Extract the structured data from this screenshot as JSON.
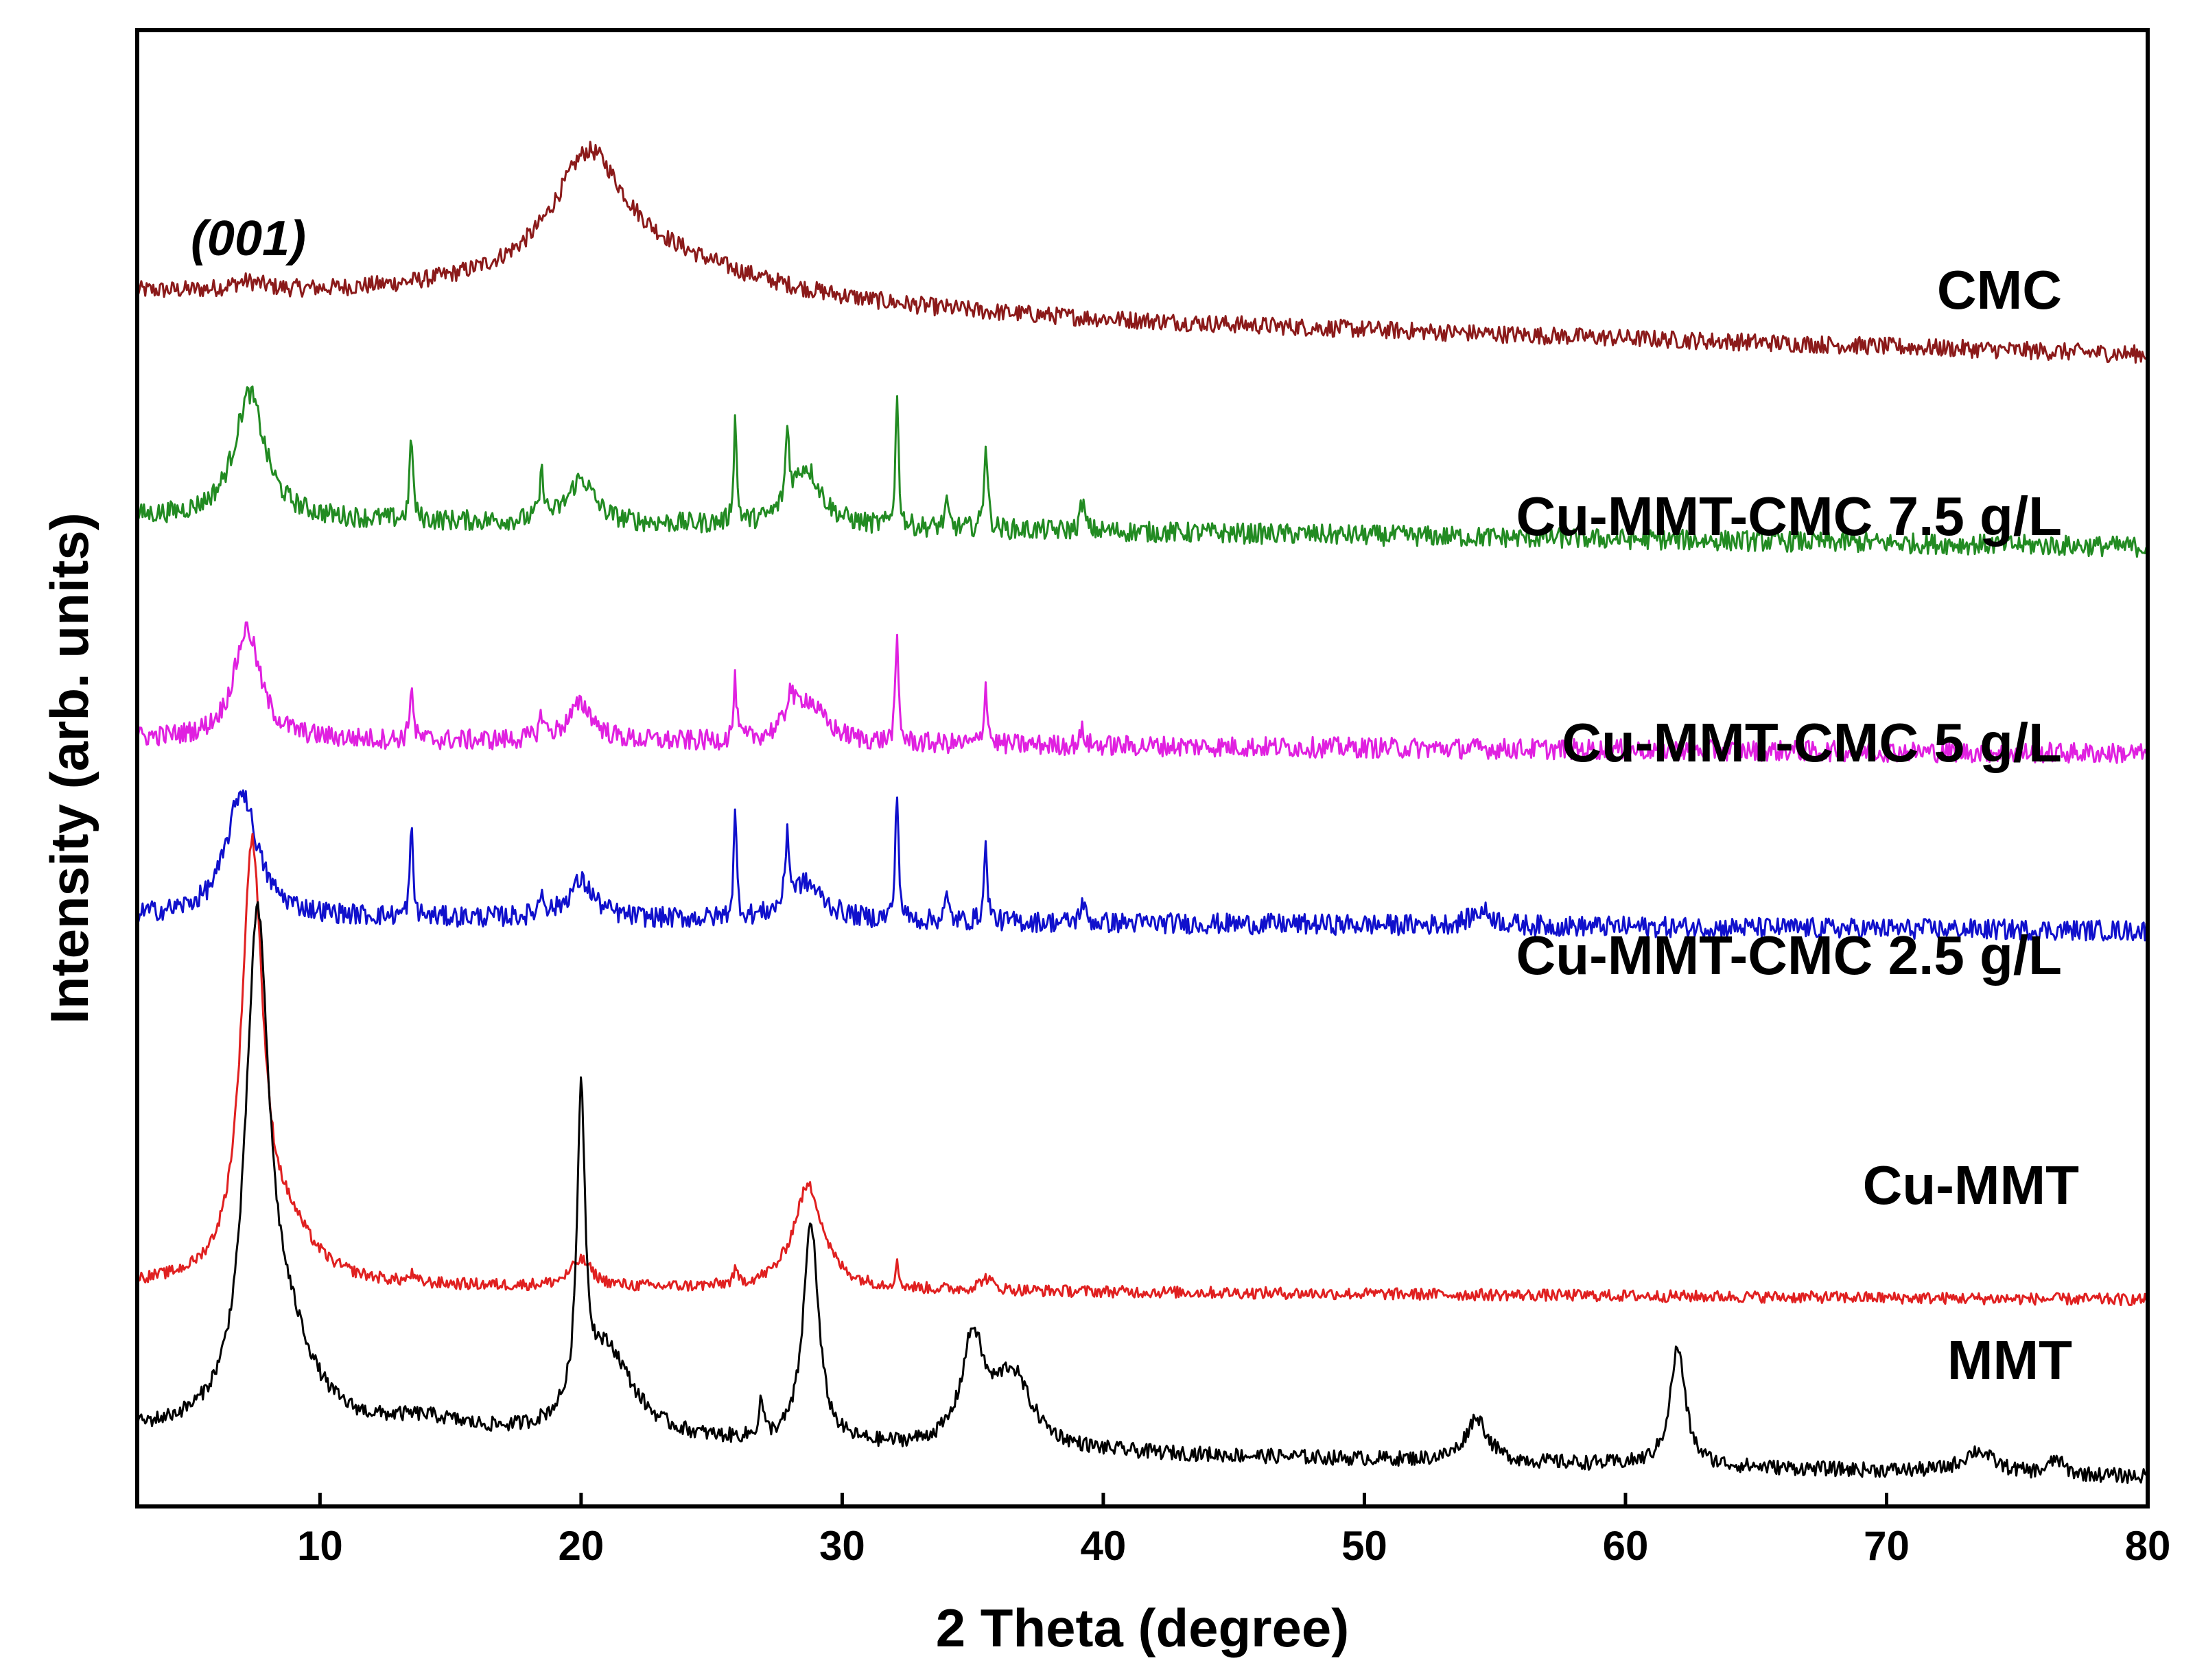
{
  "chart_data": {
    "type": "line",
    "title": "",
    "xlabel": "2 Theta (degree)",
    "ylabel": "Intensity (arb. units)",
    "xlim": [
      3,
      80
    ],
    "xticks": [
      10,
      20,
      30,
      40,
      50,
      60,
      70,
      80
    ],
    "xtick_labels": [
      "10",
      "20",
      "30",
      "40",
      "50",
      "60",
      "70",
      "80"
    ],
    "yticks": false,
    "grid": false,
    "legend": "inline labels at right of each curve",
    "annotations": [
      {
        "text": "(001)",
        "x": 7.2,
        "series_ref": "CMC"
      }
    ],
    "series": [
      {
        "name": "CMC",
        "label": "CMC",
        "color": "#8b1a1a",
        "baseline": 0.82,
        "noise": 0.006,
        "slope": -0.04,
        "peaks": [
          {
            "x": 7.2,
            "h": 0.006,
            "w": 0.8
          },
          {
            "x": 20.3,
            "h": 0.075,
            "w": 1.6
          },
          {
            "x": 22.0,
            "h": 0.035,
            "w": 6.0
          }
        ]
      },
      {
        "name": "Cu-MMT-CMC 7.5 g/L",
        "label": "Cu-MMT-CMC 7.5 g/L",
        "color": "#228b22",
        "baseline": 0.67,
        "noise": 0.007,
        "slope": -0.02,
        "peaks": [
          {
            "x": 7.3,
            "h": 0.085,
            "w": 0.7
          },
          {
            "x": 13.5,
            "h": 0.06,
            "w": 0.07
          },
          {
            "x": 18.5,
            "h": 0.03,
            "w": 0.1
          },
          {
            "x": 20.0,
            "h": 0.03,
            "w": 0.6
          },
          {
            "x": 25.9,
            "h": 0.07,
            "w": 0.07
          },
          {
            "x": 27.9,
            "h": 0.05,
            "w": 0.08
          },
          {
            "x": 28.6,
            "h": 0.04,
            "w": 0.7
          },
          {
            "x": 32.1,
            "h": 0.09,
            "w": 0.07
          },
          {
            "x": 34.0,
            "h": 0.015,
            "w": 0.1
          },
          {
            "x": 35.5,
            "h": 0.06,
            "w": 0.08
          },
          {
            "x": 39.2,
            "h": 0.02,
            "w": 0.1
          }
        ]
      },
      {
        "name": "Cu-MMT-CMC 5 g/L",
        "label": "Cu-MMT-CMC 5 g/L",
        "color": "#e020e0",
        "baseline": 0.52,
        "noise": 0.007,
        "slope": -0.01,
        "peaks": [
          {
            "x": 7.2,
            "h": 0.075,
            "w": 0.6
          },
          {
            "x": 13.5,
            "h": 0.04,
            "w": 0.07
          },
          {
            "x": 18.5,
            "h": 0.015,
            "w": 0.12
          },
          {
            "x": 20.0,
            "h": 0.025,
            "w": 0.6
          },
          {
            "x": 25.9,
            "h": 0.04,
            "w": 0.07
          },
          {
            "x": 28.0,
            "h": 0.02,
            "w": 0.12
          },
          {
            "x": 28.6,
            "h": 0.03,
            "w": 0.8
          },
          {
            "x": 32.1,
            "h": 0.07,
            "w": 0.07
          },
          {
            "x": 35.5,
            "h": 0.04,
            "w": 0.08
          },
          {
            "x": 39.2,
            "h": 0.01,
            "w": 0.1
          }
        ]
      },
      {
        "name": "Cu-MMT-CMC 2.5 g/L",
        "label": "Cu-MMT-CMC 2.5 g/L",
        "color": "#1010cc",
        "baseline": 0.4,
        "noise": 0.007,
        "slope": -0.01,
        "peaks": [
          {
            "x": 7.0,
            "h": 0.085,
            "w": 0.7
          },
          {
            "x": 13.5,
            "h": 0.06,
            "w": 0.07
          },
          {
            "x": 18.5,
            "h": 0.015,
            "w": 0.12
          },
          {
            "x": 20.0,
            "h": 0.025,
            "w": 0.6
          },
          {
            "x": 25.9,
            "h": 0.07,
            "w": 0.07
          },
          {
            "x": 27.9,
            "h": 0.05,
            "w": 0.08
          },
          {
            "x": 28.6,
            "h": 0.025,
            "w": 0.8
          },
          {
            "x": 32.1,
            "h": 0.09,
            "w": 0.07
          },
          {
            "x": 34.0,
            "h": 0.015,
            "w": 0.1
          },
          {
            "x": 35.5,
            "h": 0.05,
            "w": 0.08
          },
          {
            "x": 39.2,
            "h": 0.015,
            "w": 0.1
          },
          {
            "x": 54.5,
            "h": 0.01,
            "w": 0.5
          }
        ]
      },
      {
        "name": "Cu-MMT",
        "label": "Cu-MMT",
        "color": "#e02020",
        "baseline": 0.15,
        "noise": 0.004,
        "slope": -0.01,
        "peaks": [
          {
            "x": 7.4,
            "h": 0.29,
            "w": 0.5
          },
          {
            "x": 8.8,
            "h": 0.03,
            "w": 1.2
          },
          {
            "x": 13.5,
            "h": 0.005,
            "w": 0.1
          },
          {
            "x": 20.0,
            "h": 0.018,
            "w": 0.5
          },
          {
            "x": 25.9,
            "h": 0.008,
            "w": 0.1
          },
          {
            "x": 28.7,
            "h": 0.07,
            "w": 0.7
          },
          {
            "x": 32.1,
            "h": 0.015,
            "w": 0.08
          },
          {
            "x": 35.5,
            "h": 0.008,
            "w": 0.3
          }
        ]
      },
      {
        "name": "MMT",
        "label": "MMT",
        "color": "#000000",
        "baseline": 0.05,
        "noise": 0.005,
        "slope": -0.03,
        "peaks": [
          {
            "x": 7.6,
            "h": 0.33,
            "w": 0.55
          },
          {
            "x": 8.8,
            "h": 0.05,
            "w": 1.2
          },
          {
            "x": 14.0,
            "h": 0.01,
            "w": 2.0
          },
          {
            "x": 20.0,
            "h": 0.21,
            "w": 0.18
          },
          {
            "x": 21.0,
            "h": 0.06,
            "w": 1.2
          },
          {
            "x": 26.9,
            "h": 0.025,
            "w": 0.1
          },
          {
            "x": 28.8,
            "h": 0.15,
            "w": 0.35
          },
          {
            "x": 35.0,
            "h": 0.07,
            "w": 0.5
          },
          {
            "x": 36.5,
            "h": 0.05,
            "w": 0.9
          },
          {
            "x": 54.3,
            "h": 0.03,
            "w": 0.5
          },
          {
            "x": 62.0,
            "h": 0.08,
            "w": 0.35
          },
          {
            "x": 73.5,
            "h": 0.015,
            "w": 0.7
          },
          {
            "x": 76.5,
            "h": 0.01,
            "w": 0.3
          }
        ]
      }
    ]
  }
}
